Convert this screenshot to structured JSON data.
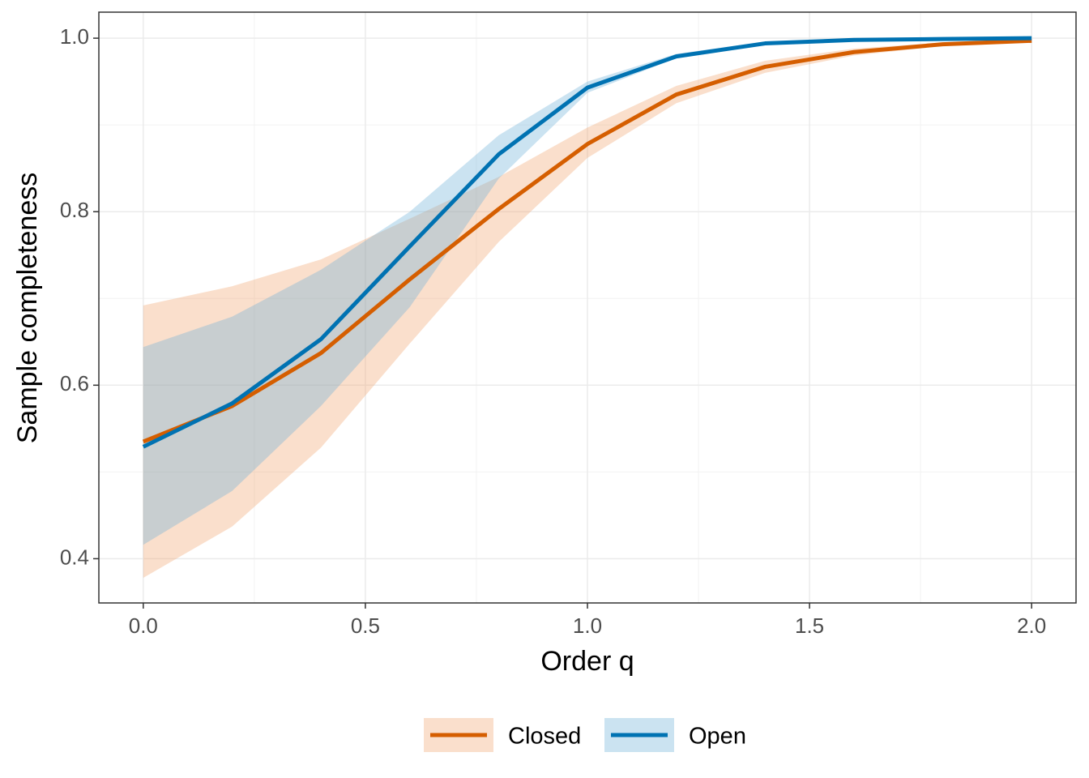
{
  "chart_data": {
    "type": "line",
    "x_label": "Order q",
    "y_label": "Sample completeness",
    "x": [
      0,
      0.2,
      0.4,
      0.6,
      0.8,
      1.0,
      1.2,
      1.4,
      1.6,
      1.8,
      2.0
    ],
    "series": [
      {
        "name": "Closed",
        "color": "#d55e00",
        "band_color": "#f0a26e",
        "values": [
          0.535,
          0.576,
          0.637,
          0.722,
          0.803,
          0.878,
          0.935,
          0.967,
          0.984,
          0.993,
          0.997
        ],
        "lower": [
          0.378,
          0.437,
          0.528,
          0.648,
          0.765,
          0.862,
          0.925,
          0.96,
          0.98,
          0.991,
          0.995
        ],
        "upper": [
          0.692,
          0.714,
          0.745,
          0.792,
          0.84,
          0.897,
          0.945,
          0.974,
          0.988,
          0.995,
          0.999
        ]
      },
      {
        "name": "Open",
        "color": "#0072b2",
        "band_color": "#6baed6",
        "values": [
          0.529,
          0.579,
          0.653,
          0.76,
          0.866,
          0.943,
          0.979,
          0.994,
          0.998,
          0.999,
          1.0
        ],
        "lower": [
          0.416,
          0.478,
          0.576,
          0.69,
          0.838,
          0.937,
          0.977,
          0.993,
          0.998,
          0.999,
          1.0
        ],
        "upper": [
          0.644,
          0.679,
          0.733,
          0.8,
          0.888,
          0.95,
          0.982,
          0.996,
          0.999,
          1.0,
          1.0
        ]
      }
    ],
    "xlim": [
      -0.1,
      2.1
    ],
    "ylim": [
      0.349,
      1.03
    ],
    "xticks": [
      {
        "value": 0,
        "label": "0.0"
      },
      0.5,
      {
        "value": 1,
        "label": "1.0"
      },
      1.5,
      {
        "value": 2,
        "label": "2.0"
      }
    ],
    "yticks": [
      0.4,
      0.6,
      0.8,
      {
        "value": 1,
        "label": "1.0"
      }
    ],
    "x_minor_ticks": [
      0.25,
      0.75,
      1.25,
      1.75
    ],
    "y_minor_ticks": [
      0.5,
      0.7,
      0.9
    ],
    "grid": true,
    "legend": "bottom"
  }
}
